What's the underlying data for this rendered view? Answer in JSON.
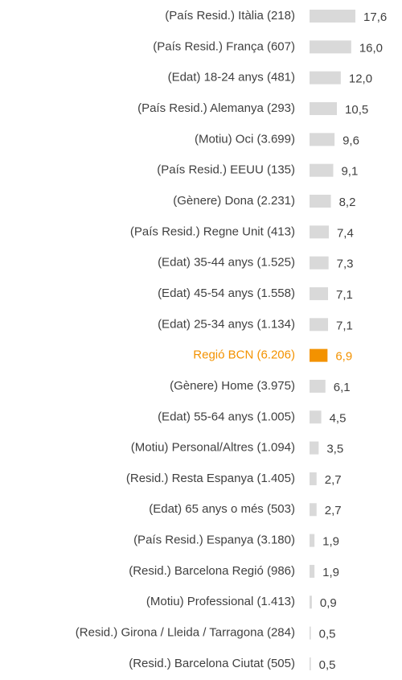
{
  "chart_data": {
    "type": "hbar",
    "categories": [
      "(País Resid.) Itàlia (218)",
      "(País Resid.) França (607)",
      "(Edat) 18-24 anys (481)",
      "(País Resid.) Alemanya (293)",
      "(Motiu) Oci (3.699)",
      "(País Resid.) EEUU (135)",
      "(Gènere) Dona (2.231)",
      "(País Resid.) Regne Unit (413)",
      "(Edat) 35-44 anys (1.525)",
      "(Edat) 45-54 anys (1.558)",
      "(Edat) 25-34 anys  (1.134)",
      "Regió BCN (6.206)",
      "(Gènere) Home (3.975)",
      "(Edat) 55-64 anys (1.005)",
      "(Motiu) Personal/Altres (1.094)",
      "(Resid.) Resta Espanya (1.405)",
      "(Edat) 65 anys o més (503)",
      "(País Resid.) Espanya (3.180)",
      "(Resid.) Barcelona Regió (986)",
      "(Motiu) Professional (1.413)",
      "(Resid.) Girona / Lleida / Tarragona (284)",
      "(Resid.) Barcelona Ciutat (505)"
    ],
    "values": [
      17.6,
      16.0,
      12.0,
      10.5,
      9.6,
      9.1,
      8.2,
      7.4,
      7.3,
      7.1,
      7.1,
      6.9,
      6.1,
      4.5,
      3.5,
      2.7,
      2.7,
      1.9,
      1.9,
      0.9,
      0.5,
      0.5
    ],
    "value_labels": [
      "17,6",
      "16,0",
      "12,0",
      "10,5",
      "9,6",
      "9,1",
      "8,2",
      "7,4",
      "7,3",
      "7,1",
      "7,1",
      "6,9",
      "6,1",
      "4,5",
      "3,5",
      "2,7",
      "2,7",
      "1,9",
      "1,9",
      "0,9",
      "0,5",
      "0,5"
    ],
    "colors": [
      "#d9d9d9",
      "#d9d9d9",
      "#d9d9d9",
      "#d9d9d9",
      "#d9d9d9",
      "#d9d9d9",
      "#d9d9d9",
      "#d9d9d9",
      "#d9d9d9",
      "#d9d9d9",
      "#d9d9d9",
      "#f39200",
      "#d9d9d9",
      "#d9d9d9",
      "#d9d9d9",
      "#d9d9d9",
      "#d9d9d9",
      "#d9d9d9",
      "#d9d9d9",
      "#d9d9d9",
      "#d9d9d9",
      "#d9d9d9"
    ],
    "label_colors": [
      "#404040",
      "#404040",
      "#404040",
      "#404040",
      "#404040",
      "#404040",
      "#404040",
      "#404040",
      "#404040",
      "#404040",
      "#404040",
      "#f39200",
      "#404040",
      "#404040",
      "#404040",
      "#404040",
      "#404040",
      "#404040",
      "#404040",
      "#404040",
      "#404040",
      "#404040"
    ]
  }
}
